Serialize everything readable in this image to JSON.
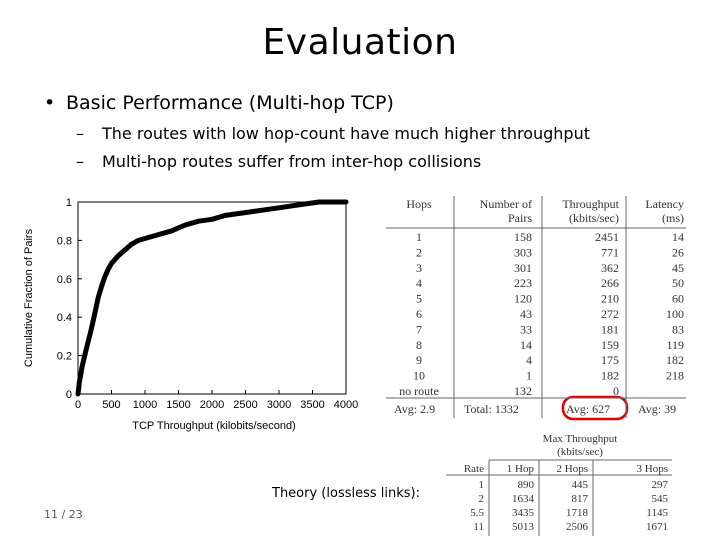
{
  "slide": {
    "title": "Evaluation",
    "bullet": "Basic Performance (Multi-hop TCP)",
    "subbullets": [
      "The routes with low hop-count have much higher throughput",
      "Multi-hop routes suffer from inter-hop collisions"
    ],
    "theory_label": "Theory (lossless links):",
    "page": "11 / 23"
  },
  "chart_data": {
    "type": "line",
    "xlabel": "TCP Throughput (kilobits/second)",
    "ylabel": "Cumulative Fraction of Pairs",
    "xlim": [
      0,
      4000
    ],
    "ylim": [
      0,
      1
    ],
    "xticks": [
      "0",
      "500",
      "1000",
      "1500",
      "2000",
      "2500",
      "3000",
      "3500",
      "4000"
    ],
    "yticks": [
      "0",
      "0.2",
      "0.4",
      "0.6",
      "0.8",
      "1"
    ],
    "series": [
      {
        "x": [
          0,
          10,
          20,
          40,
          60,
          100,
          150,
          200,
          250,
          300,
          350,
          400,
          450,
          500,
          600,
          700,
          800,
          900,
          1000,
          1200,
          1400,
          1600,
          1800,
          2000,
          2200,
          2400,
          2600,
          2800,
          3000,
          3200,
          3400,
          3600,
          4000
        ],
        "y": [
          0,
          0.03,
          0.06,
          0.1,
          0.14,
          0.2,
          0.27,
          0.34,
          0.42,
          0.5,
          0.56,
          0.61,
          0.65,
          0.68,
          0.72,
          0.75,
          0.78,
          0.8,
          0.81,
          0.83,
          0.85,
          0.88,
          0.9,
          0.91,
          0.93,
          0.94,
          0.95,
          0.96,
          0.97,
          0.98,
          0.99,
          1.0,
          1.0
        ]
      }
    ],
    "grid": false
  },
  "hop_table": {
    "headers": [
      [
        "Hops",
        ""
      ],
      [
        "Number of",
        "Pairs"
      ],
      [
        "Throughput",
        "(kbits/sec)"
      ],
      [
        "Latency",
        "(ms)"
      ]
    ],
    "rows": [
      [
        "1",
        "158",
        "2451",
        "14"
      ],
      [
        "2",
        "303",
        "771",
        "26"
      ],
      [
        "3",
        "301",
        "362",
        "45"
      ],
      [
        "4",
        "223",
        "266",
        "50"
      ],
      [
        "5",
        "120",
        "210",
        "60"
      ],
      [
        "6",
        "43",
        "272",
        "100"
      ],
      [
        "7",
        "33",
        "181",
        "83"
      ],
      [
        "8",
        "14",
        "159",
        "119"
      ],
      [
        "9",
        "4",
        "175",
        "182"
      ],
      [
        "10",
        "1",
        "182",
        "218"
      ],
      [
        "no route",
        "132",
        "0",
        ""
      ]
    ],
    "footer": [
      "Avg: 2.9",
      "Total: 1332",
      "Avg: 627",
      "Avg: 39"
    ],
    "highlight_color": "#e00000"
  },
  "theory_table": {
    "group_header": [
      "Max Throughput",
      "(kbits/sec)"
    ],
    "headers": [
      "Rate",
      "1 Hop",
      "2 Hops",
      "3 Hops"
    ],
    "rows": [
      [
        "1",
        "890",
        "445",
        "297"
      ],
      [
        "2",
        "1634",
        "817",
        "545"
      ],
      [
        "5.5",
        "3435",
        "1718",
        "1145"
      ],
      [
        "11",
        "5013",
        "2506",
        "1671"
      ]
    ]
  }
}
